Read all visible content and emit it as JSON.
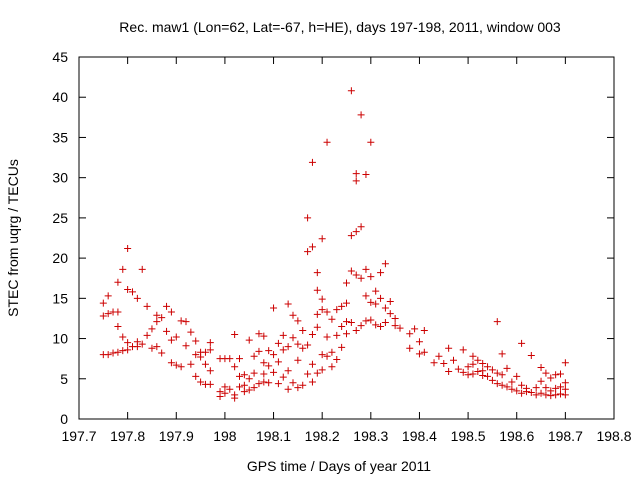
{
  "chart_data": {
    "type": "scatter",
    "title": "Rec. maw1 (Lon=62, Lat=-67, h=HE), days 197-198, 2011, window 003",
    "xlabel": "GPS time / Days of year 2011",
    "ylabel": "STEC from uqrg / TECUs",
    "xlim": [
      197.7,
      198.8
    ],
    "ylim": [
      0,
      45
    ],
    "xticks": [
      197.7,
      197.8,
      197.9,
      198.0,
      198.1,
      198.2,
      198.3,
      198.4,
      198.5,
      198.6,
      198.7,
      198.8
    ],
    "xtick_labels": [
      "197.7",
      "197.8",
      "197.9",
      "198",
      "198.1",
      "198.2",
      "198.3",
      "198.4",
      "198.5",
      "198.6",
      "198.7",
      "198.8"
    ],
    "yticks": [
      0,
      5,
      10,
      15,
      20,
      25,
      30,
      35,
      40,
      45
    ],
    "ytick_labels": [
      "0",
      "5",
      "10",
      "15",
      "20",
      "25",
      "30",
      "35",
      "40",
      "45"
    ],
    "grid": false,
    "marker": "+",
    "color": "#cc0000",
    "series": [
      {
        "name": "STEC",
        "points": [
          [
            197.75,
            14.4
          ],
          [
            197.75,
            12.8
          ],
          [
            197.75,
            8.0
          ],
          [
            197.76,
            15.3
          ],
          [
            197.76,
            13.1
          ],
          [
            197.76,
            8.0
          ],
          [
            197.77,
            13.3
          ],
          [
            197.77,
            8.2
          ],
          [
            197.78,
            17.0
          ],
          [
            197.78,
            13.3
          ],
          [
            197.78,
            11.5
          ],
          [
            197.78,
            8.3
          ],
          [
            197.79,
            18.6
          ],
          [
            197.79,
            10.2
          ],
          [
            197.79,
            8.5
          ],
          [
            197.8,
            21.2
          ],
          [
            197.8,
            16.1
          ],
          [
            197.8,
            9.5
          ],
          [
            197.8,
            8.6
          ],
          [
            197.81,
            15.8
          ],
          [
            197.81,
            9.0
          ],
          [
            197.82,
            15.0
          ],
          [
            197.82,
            9.6
          ],
          [
            197.82,
            9.0
          ],
          [
            197.83,
            18.6
          ],
          [
            197.83,
            9.3
          ],
          [
            197.84,
            14.0
          ],
          [
            197.84,
            10.4
          ],
          [
            197.85,
            11.2
          ],
          [
            197.85,
            8.8
          ],
          [
            197.86,
            12.9
          ],
          [
            197.86,
            12.1
          ],
          [
            197.86,
            9.0
          ],
          [
            197.87,
            12.6
          ],
          [
            197.87,
            8.2
          ],
          [
            197.88,
            14.0
          ],
          [
            197.88,
            10.9
          ],
          [
            197.89,
            13.3
          ],
          [
            197.89,
            9.8
          ],
          [
            197.89,
            7.0
          ],
          [
            197.9,
            10.2
          ],
          [
            197.9,
            6.7
          ],
          [
            197.91,
            12.2
          ],
          [
            197.91,
            6.5
          ],
          [
            197.92,
            12.1
          ],
          [
            197.92,
            9.1
          ],
          [
            197.93,
            10.8
          ],
          [
            197.93,
            6.8
          ],
          [
            197.94,
            9.7
          ],
          [
            197.94,
            8.0
          ],
          [
            197.94,
            5.3
          ],
          [
            197.95,
            8.3
          ],
          [
            197.95,
            7.7
          ],
          [
            197.95,
            4.6
          ],
          [
            197.96,
            8.3
          ],
          [
            197.96,
            6.8
          ],
          [
            197.96,
            4.3
          ],
          [
            197.97,
            9.5
          ],
          [
            197.97,
            8.6
          ],
          [
            197.97,
            6.0
          ],
          [
            197.97,
            4.3
          ],
          [
            197.99,
            7.5
          ],
          [
            197.99,
            3.4
          ],
          [
            197.99,
            2.8
          ],
          [
            198.0,
            7.5
          ],
          [
            198.0,
            4.0
          ],
          [
            198.0,
            3.2
          ],
          [
            198.01,
            7.5
          ],
          [
            198.01,
            3.7
          ],
          [
            198.02,
            10.5
          ],
          [
            198.02,
            6.5
          ],
          [
            198.02,
            3.0
          ],
          [
            198.02,
            2.6
          ],
          [
            198.03,
            7.5
          ],
          [
            198.03,
            5.3
          ],
          [
            198.03,
            4.0
          ],
          [
            198.04,
            5.5
          ],
          [
            198.04,
            4.2
          ],
          [
            198.04,
            3.4
          ],
          [
            198.05,
            9.8
          ],
          [
            198.05,
            5.0
          ],
          [
            198.05,
            3.6
          ],
          [
            198.06,
            7.8
          ],
          [
            198.06,
            5.7
          ],
          [
            198.06,
            3.9
          ],
          [
            198.07,
            10.6
          ],
          [
            198.07,
            8.4
          ],
          [
            198.07,
            4.4
          ],
          [
            198.08,
            10.3
          ],
          [
            198.08,
            7.0
          ],
          [
            198.08,
            5.6
          ],
          [
            198.08,
            4.6
          ],
          [
            198.09,
            8.5
          ],
          [
            198.09,
            6.6
          ],
          [
            198.09,
            4.5
          ],
          [
            198.1,
            13.8
          ],
          [
            198.1,
            8.0
          ],
          [
            198.1,
            5.8
          ],
          [
            198.11,
            9.4
          ],
          [
            198.11,
            7.1
          ],
          [
            198.11,
            4.4
          ],
          [
            198.12,
            10.4
          ],
          [
            198.12,
            8.6
          ],
          [
            198.12,
            5.2
          ],
          [
            198.13,
            14.3
          ],
          [
            198.13,
            9.0
          ],
          [
            198.13,
            6.0
          ],
          [
            198.13,
            3.7
          ],
          [
            198.14,
            12.9
          ],
          [
            198.14,
            10.1
          ],
          [
            198.14,
            4.5
          ],
          [
            198.15,
            12.2
          ],
          [
            198.15,
            9.3
          ],
          [
            198.15,
            7.3
          ],
          [
            198.15,
            3.9
          ],
          [
            198.16,
            11.0
          ],
          [
            198.16,
            8.8
          ],
          [
            198.16,
            4.2
          ],
          [
            198.17,
            25.0
          ],
          [
            198.17,
            20.8
          ],
          [
            198.17,
            9.2
          ],
          [
            198.17,
            5.6
          ],
          [
            198.18,
            31.9
          ],
          [
            198.18,
            21.4
          ],
          [
            198.18,
            10.5
          ],
          [
            198.18,
            6.8
          ],
          [
            198.18,
            4.6
          ],
          [
            198.19,
            18.2
          ],
          [
            198.19,
            16.0
          ],
          [
            198.19,
            13.0
          ],
          [
            198.19,
            11.4
          ],
          [
            198.19,
            5.7
          ],
          [
            198.2,
            22.4
          ],
          [
            198.2,
            14.9
          ],
          [
            198.2,
            13.6
          ],
          [
            198.2,
            8.0
          ],
          [
            198.2,
            6.1
          ],
          [
            198.21,
            34.4
          ],
          [
            198.21,
            13.3
          ],
          [
            198.21,
            10.2
          ],
          [
            198.21,
            7.8
          ],
          [
            198.22,
            12.4
          ],
          [
            198.22,
            8.3
          ],
          [
            198.22,
            6.5
          ],
          [
            198.23,
            13.6
          ],
          [
            198.23,
            10.4
          ],
          [
            198.23,
            7.4
          ],
          [
            198.24,
            14.0
          ],
          [
            198.24,
            11.5
          ],
          [
            198.24,
            8.9
          ],
          [
            198.25,
            16.9
          ],
          [
            198.25,
            14.4
          ],
          [
            198.25,
            12.1
          ],
          [
            198.25,
            10.6
          ],
          [
            198.26,
            40.8
          ],
          [
            198.26,
            22.8
          ],
          [
            198.26,
            18.4
          ],
          [
            198.26,
            12.0
          ],
          [
            198.27,
            30.5
          ],
          [
            198.27,
            29.6
          ],
          [
            198.27,
            23.3
          ],
          [
            198.27,
            17.9
          ],
          [
            198.27,
            11.0
          ],
          [
            198.28,
            37.8
          ],
          [
            198.28,
            23.9
          ],
          [
            198.28,
            17.5
          ],
          [
            198.28,
            11.6
          ],
          [
            198.29,
            30.4
          ],
          [
            198.29,
            18.6
          ],
          [
            198.29,
            15.3
          ],
          [
            198.29,
            12.2
          ],
          [
            198.3,
            34.4
          ],
          [
            198.3,
            17.7
          ],
          [
            198.3,
            14.5
          ],
          [
            198.3,
            12.3
          ],
          [
            198.31,
            15.9
          ],
          [
            198.31,
            14.3
          ],
          [
            198.31,
            11.7
          ],
          [
            198.32,
            18.2
          ],
          [
            198.32,
            15.0
          ],
          [
            198.32,
            11.5
          ],
          [
            198.33,
            19.3
          ],
          [
            198.33,
            13.8
          ],
          [
            198.33,
            12.0
          ],
          [
            198.34,
            14.6
          ],
          [
            198.34,
            13.1
          ],
          [
            198.35,
            12.5
          ],
          [
            198.35,
            11.6
          ],
          [
            198.36,
            11.3
          ],
          [
            198.38,
            10.6
          ],
          [
            198.38,
            8.8
          ],
          [
            198.39,
            11.2
          ],
          [
            198.4,
            9.6
          ],
          [
            198.4,
            8.1
          ],
          [
            198.41,
            11.0
          ],
          [
            198.41,
            8.3
          ],
          [
            198.43,
            7.0
          ],
          [
            198.44,
            7.8
          ],
          [
            198.45,
            6.9
          ],
          [
            198.46,
            8.8
          ],
          [
            198.46,
            5.9
          ],
          [
            198.47,
            7.3
          ],
          [
            198.48,
            6.2
          ],
          [
            198.49,
            8.6
          ],
          [
            198.49,
            5.8
          ],
          [
            198.5,
            6.5
          ],
          [
            198.5,
            5.5
          ],
          [
            198.51,
            7.8
          ],
          [
            198.51,
            6.8
          ],
          [
            198.51,
            5.6
          ],
          [
            198.52,
            7.3
          ],
          [
            198.52,
            5.9
          ],
          [
            198.53,
            6.9
          ],
          [
            198.53,
            6.0
          ],
          [
            198.53,
            5.4
          ],
          [
            198.54,
            6.5
          ],
          [
            198.54,
            5.3
          ],
          [
            198.55,
            6.1
          ],
          [
            198.55,
            4.8
          ],
          [
            198.56,
            5.7
          ],
          [
            198.56,
            4.4
          ],
          [
            198.56,
            12.1
          ],
          [
            198.57,
            8.1
          ],
          [
            198.57,
            5.5
          ],
          [
            198.57,
            4.2
          ],
          [
            198.58,
            6.3
          ],
          [
            198.58,
            4.0
          ],
          [
            198.59,
            4.6
          ],
          [
            198.59,
            3.7
          ],
          [
            198.6,
            5.3
          ],
          [
            198.6,
            3.5
          ],
          [
            198.61,
            9.4
          ],
          [
            198.61,
            4.2
          ],
          [
            198.61,
            3.2
          ],
          [
            198.62,
            3.8
          ],
          [
            198.62,
            3.4
          ],
          [
            198.63,
            7.9
          ],
          [
            198.63,
            3.3
          ],
          [
            198.64,
            3.9
          ],
          [
            198.64,
            3.0
          ],
          [
            198.65,
            6.4
          ],
          [
            198.65,
            4.7
          ],
          [
            198.65,
            3.2
          ],
          [
            198.66,
            5.7
          ],
          [
            198.66,
            3.9
          ],
          [
            198.66,
            3.0
          ],
          [
            198.67,
            5.1
          ],
          [
            198.67,
            3.5
          ],
          [
            198.67,
            2.9
          ],
          [
            198.68,
            5.5
          ],
          [
            198.68,
            3.8
          ],
          [
            198.68,
            3.0
          ],
          [
            198.69,
            5.6
          ],
          [
            198.69,
            4.0
          ],
          [
            198.69,
            3.1
          ],
          [
            198.7,
            7.0
          ],
          [
            198.7,
            4.5
          ],
          [
            198.7,
            3.7
          ],
          [
            198.7,
            3.0
          ]
        ]
      }
    ]
  }
}
